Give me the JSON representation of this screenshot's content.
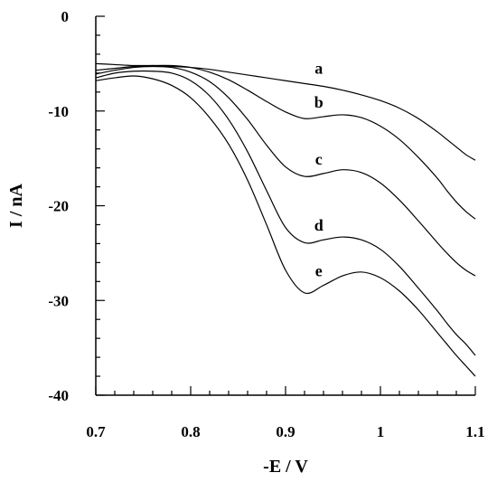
{
  "chart_data": {
    "type": "line",
    "xlabel": "-E / V",
    "ylabel": "I / nA",
    "xlim": [
      0.7,
      1.1
    ],
    "ylim": [
      -40,
      0
    ],
    "x_ticks": [
      "0.7",
      "0.8",
      "0.9",
      "1",
      "1.1"
    ],
    "y_ticks": [
      "0",
      "-10",
      "-20",
      "-30",
      "-40"
    ],
    "grid": false,
    "series": [
      {
        "name": "a",
        "x": [
          0.7,
          0.72,
          0.74,
          0.76,
          0.78,
          0.8,
          0.82,
          0.84,
          0.86,
          0.88,
          0.9,
          0.92,
          0.94,
          0.96,
          0.98,
          1.0,
          1.02,
          1.04,
          1.06,
          1.07,
          1.08,
          1.09,
          1.1
        ],
        "y": [
          -5.0,
          -5.1,
          -5.2,
          -5.2,
          -5.3,
          -5.4,
          -5.6,
          -5.9,
          -6.2,
          -6.5,
          -6.8,
          -7.1,
          -7.4,
          -7.8,
          -8.3,
          -8.9,
          -9.7,
          -10.8,
          -12.2,
          -13.0,
          -13.8,
          -14.6,
          -15.2
        ]
      },
      {
        "name": "b",
        "x": [
          0.7,
          0.72,
          0.74,
          0.76,
          0.78,
          0.8,
          0.82,
          0.84,
          0.86,
          0.88,
          0.9,
          0.92,
          0.94,
          0.96,
          0.98,
          1.0,
          1.02,
          1.04,
          1.06,
          1.07,
          1.08,
          1.09,
          1.1
        ],
        "y": [
          -5.7,
          -5.5,
          -5.3,
          -5.2,
          -5.2,
          -5.4,
          -5.9,
          -6.7,
          -7.8,
          -9.0,
          -10.1,
          -10.8,
          -10.6,
          -10.4,
          -10.7,
          -11.6,
          -13.0,
          -14.9,
          -17.1,
          -18.4,
          -19.6,
          -20.6,
          -21.4
        ]
      },
      {
        "name": "c",
        "x": [
          0.7,
          0.72,
          0.74,
          0.76,
          0.78,
          0.8,
          0.82,
          0.84,
          0.86,
          0.88,
          0.9,
          0.92,
          0.94,
          0.96,
          0.98,
          1.0,
          1.02,
          1.04,
          1.06,
          1.07,
          1.08,
          1.09,
          1.1
        ],
        "y": [
          -6.1,
          -5.7,
          -5.4,
          -5.3,
          -5.4,
          -5.9,
          -6.9,
          -8.6,
          -10.9,
          -13.6,
          -15.9,
          -16.9,
          -16.6,
          -16.2,
          -16.5,
          -17.6,
          -19.4,
          -21.6,
          -23.9,
          -25.0,
          -26.0,
          -26.8,
          -27.4
        ]
      },
      {
        "name": "d",
        "x": [
          0.7,
          0.72,
          0.74,
          0.76,
          0.78,
          0.8,
          0.82,
          0.84,
          0.86,
          0.88,
          0.9,
          0.92,
          0.94,
          0.96,
          0.98,
          1.0,
          1.02,
          1.04,
          1.06,
          1.07,
          1.08,
          1.09,
          1.1
        ],
        "y": [
          -6.5,
          -6.0,
          -5.8,
          -5.8,
          -6.0,
          -6.8,
          -8.4,
          -10.9,
          -14.3,
          -18.4,
          -22.3,
          -23.9,
          -23.6,
          -23.3,
          -23.6,
          -24.6,
          -26.4,
          -28.7,
          -31.1,
          -32.4,
          -33.6,
          -34.6,
          -35.8
        ]
      },
      {
        "name": "e",
        "x": [
          0.7,
          0.72,
          0.74,
          0.76,
          0.78,
          0.8,
          0.82,
          0.84,
          0.86,
          0.88,
          0.9,
          0.92,
          0.94,
          0.96,
          0.98,
          1.0,
          1.02,
          1.04,
          1.06,
          1.07,
          1.08,
          1.09,
          1.1
        ],
        "y": [
          -6.8,
          -6.5,
          -6.3,
          -6.6,
          -7.3,
          -8.6,
          -10.7,
          -13.5,
          -17.3,
          -22.0,
          -26.8,
          -29.2,
          -28.4,
          -27.4,
          -27.0,
          -27.6,
          -29.0,
          -31.0,
          -33.4,
          -34.6,
          -35.8,
          -36.9,
          -38.0
        ]
      }
    ]
  }
}
